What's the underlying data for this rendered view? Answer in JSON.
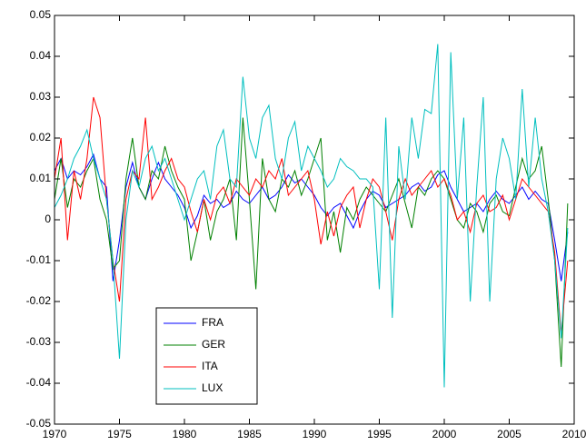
{
  "chart_data": {
    "type": "line",
    "x": [
      1970,
      1970.5,
      1971,
      1971.5,
      1972,
      1972.5,
      1973,
      1973.5,
      1974,
      1974.5,
      1975,
      1975.5,
      1976,
      1976.5,
      1977,
      1977.5,
      1978,
      1978.5,
      1979,
      1979.5,
      1980,
      1980.5,
      1981,
      1981.5,
      1982,
      1982.5,
      1983,
      1983.5,
      1984,
      1984.5,
      1985,
      1985.5,
      1986,
      1986.5,
      1987,
      1987.5,
      1988,
      1988.5,
      1989,
      1989.5,
      1990,
      1990.5,
      1991,
      1991.5,
      1992,
      1992.5,
      1993,
      1993.5,
      1994,
      1994.5,
      1995,
      1995.5,
      1996,
      1996.5,
      1997,
      1997.5,
      1998,
      1998.5,
      1999,
      1999.5,
      2000,
      2000.5,
      2001,
      2001.5,
      2002,
      2002.5,
      2003,
      2003.5,
      2004,
      2004.5,
      2005,
      2005.5,
      2006,
      2006.5,
      2007,
      2007.5,
      2008,
      2008.5,
      2009,
      2009.5
    ],
    "series": [
      {
        "name": "FRA",
        "color": "#0000ff",
        "values": [
          0.012,
          0.015,
          0.01,
          0.012,
          0.011,
          0.013,
          0.016,
          0.01,
          0.008,
          -0.015,
          -0.005,
          0.008,
          0.014,
          0.008,
          0.005,
          0.01,
          0.014,
          0.01,
          0.008,
          0.006,
          0.003,
          -0.002,
          0.001,
          0.006,
          0.004,
          0.005,
          0.003,
          0.004,
          0.007,
          0.005,
          0.004,
          0.006,
          0.008,
          0.005,
          0.006,
          0.008,
          0.011,
          0.009,
          0.01,
          0.008,
          0.006,
          0.003,
          0.001,
          0.003,
          0.004,
          0.001,
          -0.002,
          0.002,
          0.005,
          0.007,
          0.006,
          0.003,
          0.004,
          0.005,
          0.006,
          0.008,
          0.009,
          0.007,
          0.008,
          0.011,
          0.012,
          0.008,
          0.005,
          0.002,
          0.003,
          0.004,
          0.002,
          0.005,
          0.007,
          0.005,
          0.004,
          0.006,
          0.008,
          0.005,
          0.007,
          0.005,
          0.004,
          -0.005,
          -0.015,
          -0.003
        ]
      },
      {
        "name": "GER",
        "color": "#008000",
        "values": [
          0.005,
          0.015,
          0.003,
          0.01,
          0.008,
          0.012,
          0.015,
          0.005,
          0.0,
          -0.012,
          -0.01,
          0.01,
          0.02,
          0.008,
          0.005,
          0.012,
          0.01,
          0.018,
          0.012,
          0.008,
          0.005,
          -0.01,
          -0.003,
          0.005,
          -0.005,
          0.002,
          0.005,
          0.01,
          -0.005,
          0.025,
          0.005,
          -0.017,
          0.015,
          0.005,
          0.002,
          0.01,
          0.008,
          0.012,
          0.006,
          0.01,
          0.015,
          0.02,
          -0.005,
          0.002,
          -0.008,
          0.003,
          0.0,
          0.005,
          0.008,
          0.006,
          0.004,
          0.002,
          0.006,
          0.01,
          0.004,
          -0.002,
          0.008,
          0.006,
          0.01,
          0.012,
          0.01,
          0.005,
          0.0,
          -0.002,
          0.004,
          0.002,
          -0.003,
          0.004,
          0.006,
          0.002,
          0.001,
          0.008,
          0.015,
          0.01,
          0.012,
          0.018,
          0.005,
          -0.01,
          -0.036,
          0.004
        ]
      },
      {
        "name": "ITA",
        "color": "#ff0000",
        "values": [
          0.01,
          0.02,
          -0.005,
          0.012,
          0.005,
          0.015,
          0.03,
          0.025,
          0.005,
          -0.01,
          -0.02,
          0.005,
          0.012,
          0.01,
          0.025,
          0.005,
          0.008,
          0.012,
          0.015,
          0.01,
          0.008,
          0.002,
          -0.003,
          0.005,
          0.0,
          0.006,
          0.008,
          0.004,
          0.01,
          0.008,
          0.006,
          0.01,
          0.008,
          0.012,
          0.01,
          0.015,
          0.006,
          0.008,
          0.01,
          0.012,
          0.005,
          -0.006,
          0.002,
          -0.004,
          0.003,
          0.006,
          0.008,
          -0.002,
          0.005,
          0.01,
          0.008,
          0.002,
          -0.005,
          0.005,
          0.01,
          0.006,
          0.008,
          0.01,
          0.012,
          0.008,
          0.01,
          0.006,
          0.0,
          0.002,
          -0.003,
          0.004,
          0.006,
          0.002,
          0.003,
          0.006,
          0.0,
          0.005,
          0.01,
          0.008,
          0.006,
          0.004,
          0.002,
          -0.008,
          -0.028,
          -0.01
        ]
      },
      {
        "name": "LUX",
        "color": "#00bfbf",
        "values": [
          0.003,
          0.006,
          0.01,
          0.015,
          0.018,
          0.022,
          0.015,
          0.01,
          0.005,
          -0.01,
          -0.034,
          0.0,
          0.012,
          0.008,
          0.015,
          0.018,
          0.012,
          0.015,
          0.01,
          0.005,
          0.0,
          0.005,
          0.01,
          0.012,
          0.005,
          0.018,
          0.022,
          0.01,
          0.008,
          0.035,
          0.02,
          0.015,
          0.025,
          0.028,
          0.015,
          0.01,
          0.02,
          0.024,
          0.012,
          0.018,
          0.015,
          0.012,
          0.008,
          0.01,
          0.015,
          0.013,
          0.012,
          0.01,
          0.01,
          0.008,
          -0.017,
          0.025,
          -0.024,
          0.018,
          0.005,
          0.025,
          0.015,
          0.027,
          0.026,
          0.043,
          -0.041,
          0.041,
          0.005,
          0.025,
          -0.02,
          0.008,
          0.03,
          -0.02,
          0.01,
          0.02,
          0.015,
          0.005,
          0.032,
          0.008,
          0.025,
          0.01,
          0.002,
          -0.01,
          -0.029,
          -0.002
        ]
      }
    ],
    "xlim": [
      1970,
      2010
    ],
    "xticks": [
      1970,
      1975,
      1980,
      1985,
      1990,
      1995,
      2000,
      2005,
      2010
    ],
    "ylim": [
      -0.05,
      0.05
    ],
    "yticks": [
      -0.05,
      -0.04,
      -0.03,
      -0.02,
      -0.01,
      0,
      0.01,
      0.02,
      0.03,
      0.04,
      0.05
    ],
    "grid": false,
    "legend": "lower left"
  }
}
